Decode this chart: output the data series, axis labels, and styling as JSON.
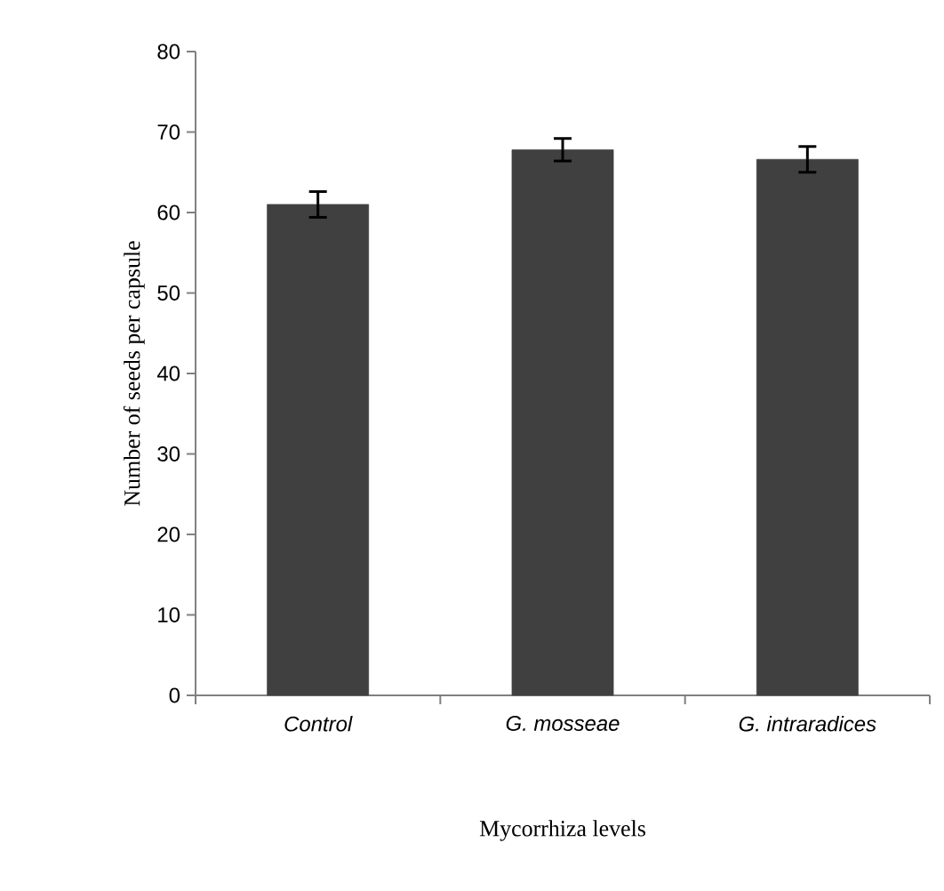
{
  "chart_data": {
    "type": "bar",
    "xlabel": "Mycorrhiza levels",
    "ylabel": "Number of seeds per capsule",
    "categories": [
      "Control",
      "G. mosseae",
      "G. intraradices"
    ],
    "values": [
      61.0,
      67.8,
      66.6
    ],
    "errors": [
      1.6,
      1.4,
      1.6
    ],
    "color": "#404040",
    "ylim": [
      0,
      80
    ],
    "yticks": [
      0,
      10,
      20,
      30,
      40,
      50,
      60,
      70,
      80
    ],
    "grid": false
  }
}
